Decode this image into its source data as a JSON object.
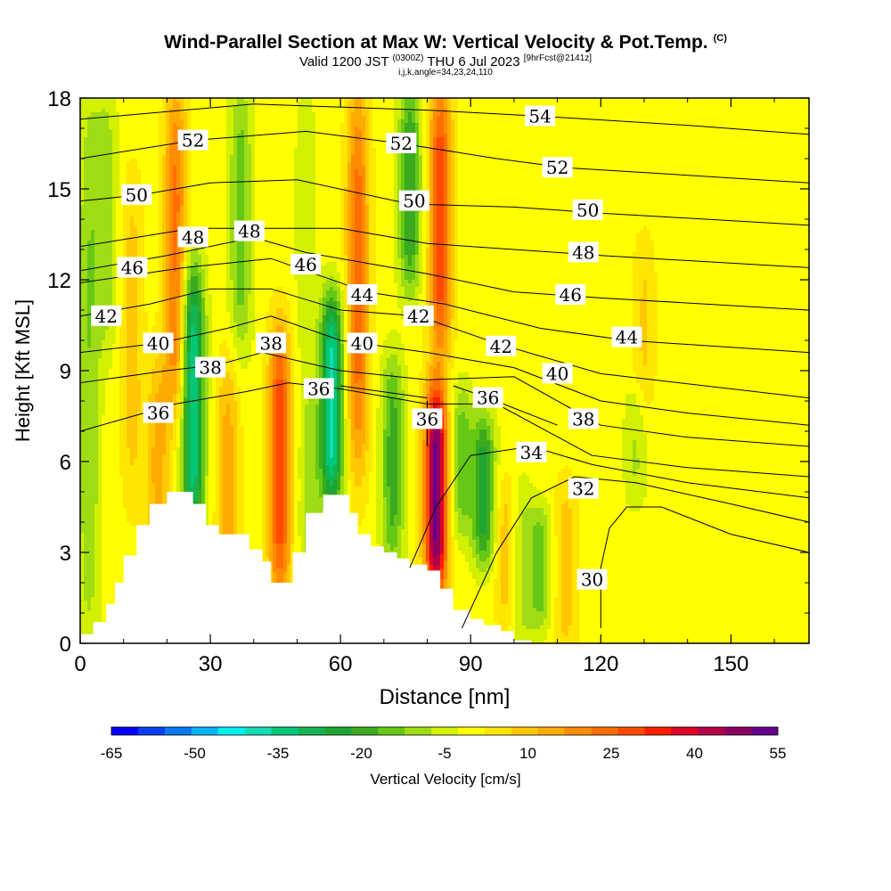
{
  "header": {
    "title": "Wind-Parallel Section at Max W: Vertical Velocity & Pot.Temp.",
    "copyright": "(C)",
    "valid_prefix": "Valid 1200 JST",
    "utc": "(0300Z)",
    "date": "THU 6 Jul 2023",
    "fcst": "[9hrFcst@2141z]",
    "params": "i,j,k,angle=34,23,24,110"
  },
  "chart_data": {
    "type": "heatmap",
    "title": "Wind-Parallel Section at Max W: Vertical Velocity & Pot.Temp.",
    "xlabel": "Distance [nm]",
    "ylabel": "Height [Kft MSL]",
    "xlim": [
      0,
      168
    ],
    "ylim": [
      0,
      18
    ],
    "x_ticks": [
      0,
      30,
      60,
      90,
      120,
      150
    ],
    "y_ticks": [
      0,
      3,
      6,
      9,
      12,
      15,
      18
    ],
    "colorbar": {
      "label": "Vertical Velocity [cm/s]",
      "tick_labels": [
        "-65",
        "-50",
        "-35",
        "-20",
        "-5",
        "10",
        "25",
        "40",
        "55"
      ],
      "levels": [
        -65,
        -60,
        -55,
        -50,
        -45,
        -40,
        -35,
        -30,
        -25,
        -20,
        -15,
        -10,
        -5,
        0,
        5,
        10,
        15,
        20,
        25,
        30,
        35,
        40,
        45,
        50,
        55
      ],
      "colors": [
        "#0000ff",
        "#0a3cf0",
        "#0a78f0",
        "#00b4f5",
        "#00f0f0",
        "#14dcb4",
        "#00c878",
        "#14b450",
        "#1ea532",
        "#3caa1e",
        "#64c814",
        "#a0dc14",
        "#d2f000",
        "#ffff00",
        "#ffe600",
        "#ffc800",
        "#ffaa00",
        "#ff8c00",
        "#ff6e00",
        "#ff4b00",
        "#ff1e00",
        "#dc0028",
        "#b40046",
        "#8c0064",
        "#64008c"
      ]
    },
    "background_w": 0,
    "velocity_features": [
      {
        "x": 2,
        "z0": 0,
        "z1": 18,
        "w": -12
      },
      {
        "x": 6,
        "z0": 10,
        "z1": 18,
        "w": -10
      },
      {
        "x": 12,
        "z0": 5,
        "z1": 15,
        "w": 10
      },
      {
        "x": 18,
        "z0": 1,
        "z1": 9,
        "w": 15
      },
      {
        "x": 22,
        "z0": 8,
        "z1": 18,
        "w": 24
      },
      {
        "x": 26,
        "z0": 4,
        "z1": 12,
        "w": -38
      },
      {
        "x": 34,
        "z0": 1,
        "z1": 9,
        "w": 15
      },
      {
        "x": 37,
        "z0": 10,
        "z1": 18,
        "w": -15
      },
      {
        "x": 46,
        "z0": 2,
        "z1": 10,
        "w": 32
      },
      {
        "x": 52,
        "z0": 9,
        "z1": 18,
        "w": -6
      },
      {
        "x": 53,
        "z0": 2,
        "z1": 8,
        "w": -10
      },
      {
        "x": 58,
        "z0": 5,
        "z1": 11,
        "w": -40
      },
      {
        "x": 64,
        "z0": 6,
        "z1": 18,
        "w": 25
      },
      {
        "x": 72,
        "z0": 3,
        "z1": 9,
        "w": -20
      },
      {
        "x": 76,
        "z0": 12,
        "z1": 18,
        "w": -22
      },
      {
        "x": 82,
        "z0": 2,
        "z1": 8,
        "w": 55
      },
      {
        "x": 83,
        "z0": 10,
        "z1": 18,
        "w": 32
      },
      {
        "x": 88,
        "z0": 4,
        "z1": 8,
        "w": -15
      },
      {
        "x": 93,
        "z0": 3,
        "z1": 7,
        "w": -25
      },
      {
        "x": 98,
        "z0": 1,
        "z1": 5,
        "w": 10
      },
      {
        "x": 102,
        "z0": 0,
        "z1": 5,
        "w": -8
      },
      {
        "x": 106,
        "z0": 1,
        "z1": 4,
        "w": -15
      },
      {
        "x": 112,
        "z0": 0,
        "z1": 5,
        "w": 10
      },
      {
        "x": 128,
        "z0": 5,
        "z1": 8,
        "w": -8
      },
      {
        "x": 130,
        "z0": 8,
        "z1": 13,
        "w": 8
      }
    ],
    "terrain": [
      [
        0,
        0.3
      ],
      [
        3,
        0.7
      ],
      [
        6,
        1.3
      ],
      [
        8,
        2.0
      ],
      [
        10,
        2.9
      ],
      [
        13,
        3.9
      ],
      [
        16,
        4.6
      ],
      [
        20,
        5.0
      ],
      [
        24,
        5.0
      ],
      [
        26,
        4.6
      ],
      [
        29,
        3.9
      ],
      [
        32,
        3.6
      ],
      [
        36,
        3.6
      ],
      [
        39,
        3.1
      ],
      [
        42,
        2.7
      ],
      [
        44,
        2.0
      ],
      [
        47,
        2.0
      ],
      [
        49,
        3.0
      ],
      [
        52,
        4.3
      ],
      [
        56,
        4.9
      ],
      [
        60,
        4.9
      ],
      [
        62,
        4.3
      ],
      [
        64,
        3.6
      ],
      [
        67,
        3.2
      ],
      [
        70,
        3.0
      ],
      [
        73,
        2.8
      ],
      [
        76,
        2.6
      ],
      [
        80,
        2.4
      ],
      [
        83,
        1.8
      ],
      [
        86,
        1.1
      ],
      [
        90,
        0.8
      ],
      [
        93,
        0.6
      ],
      [
        97,
        0.4
      ],
      [
        100,
        0.1
      ],
      [
        104,
        0
      ],
      [
        168,
        0
      ]
    ],
    "theta_lines": [
      {
        "label": "30",
        "label_at": [
          118,
          2.1
        ],
        "path": [
          [
            120,
            0.5
          ],
          [
            120,
            2.5
          ],
          [
            122,
            3.8
          ],
          [
            126,
            4.5
          ],
          [
            134,
            4.5
          ],
          [
            150,
            3.6
          ],
          [
            168,
            3.0
          ]
        ]
      },
      {
        "label": "32",
        "label_at": [
          116,
          5.1
        ],
        "path": [
          [
            88,
            0.5
          ],
          [
            96,
            3.0
          ],
          [
            104,
            4.8
          ],
          [
            114,
            5.5
          ],
          [
            128,
            5.3
          ],
          [
            150,
            4.6
          ],
          [
            168,
            4.0
          ]
        ]
      },
      {
        "label": "34",
        "label_at": [
          104,
          6.3
        ],
        "path": [
          [
            76,
            2.5
          ],
          [
            82,
            4.5
          ],
          [
            90,
            6.2
          ],
          [
            104,
            6.5
          ],
          [
            118,
            5.9
          ],
          [
            140,
            5.3
          ],
          [
            168,
            4.8
          ]
        ]
      },
      {
        "label": "36",
        "label_at": [
          18,
          7.6
        ],
        "path": [
          [
            0,
            7.0
          ],
          [
            22,
            7.9
          ],
          [
            38,
            8.3
          ],
          [
            48,
            8.6
          ],
          [
            60,
            8.4
          ],
          [
            80,
            7.9
          ],
          [
            96,
            7.9
          ],
          [
            118,
            6.2
          ],
          [
            140,
            5.8
          ],
          [
            168,
            5.5
          ]
        ]
      },
      {
        "label": "36",
        "label_at": [
          55,
          8.4
        ],
        "path": [
          [
            60,
            8.5
          ],
          [
            80,
            8.1
          ]
        ]
      },
      {
        "label": "36",
        "label_at": [
          80,
          7.4
        ],
        "path": [
          [
            80,
            8.0
          ],
          [
            80,
            6.5
          ]
        ]
      },
      {
        "label": "36",
        "label_at": [
          94,
          8.1
        ],
        "path": [
          [
            86,
            8.5
          ],
          [
            94,
            8.1
          ],
          [
            110,
            7.2
          ]
        ]
      },
      {
        "label": "38",
        "label_at": [
          30,
          9.1
        ],
        "path": [
          [
            0,
            8.6
          ],
          [
            20,
            9.0
          ],
          [
            32,
            9.2
          ],
          [
            42,
            9.6
          ],
          [
            60,
            9.0
          ],
          [
            80,
            8.7
          ],
          [
            100,
            8.8
          ],
          [
            120,
            7.2
          ],
          [
            140,
            6.8
          ],
          [
            168,
            6.5
          ]
        ]
      },
      {
        "label": "38",
        "label_at": [
          44,
          9.9
        ],
        "path": [
          [
            44,
            10.0
          ]
        ]
      },
      {
        "label": "38",
        "label_at": [
          116,
          7.4
        ],
        "path": [
          [
            116,
            7.4
          ]
        ]
      },
      {
        "label": "40",
        "label_at": [
          18,
          9.9
        ],
        "path": [
          [
            0,
            9.6
          ],
          [
            18,
            9.9
          ],
          [
            34,
            10.4
          ],
          [
            44,
            10.8
          ],
          [
            60,
            10.0
          ],
          [
            80,
            9.6
          ],
          [
            100,
            9.1
          ],
          [
            120,
            8.0
          ],
          [
            140,
            7.6
          ],
          [
            168,
            7.2
          ]
        ]
      },
      {
        "label": "40",
        "label_at": [
          65,
          9.9
        ],
        "path": [
          [
            65,
            9.9
          ]
        ]
      },
      {
        "label": "40",
        "label_at": [
          110,
          8.9
        ],
        "path": [
          [
            110,
            8.9
          ]
        ]
      },
      {
        "label": "42",
        "label_at": [
          6,
          10.8
        ],
        "path": [
          [
            0,
            10.8
          ],
          [
            16,
            11.2
          ],
          [
            30,
            11.7
          ],
          [
            44,
            11.7
          ],
          [
            60,
            11.0
          ],
          [
            78,
            10.8
          ],
          [
            96,
            9.9
          ],
          [
            120,
            8.9
          ],
          [
            168,
            8.1
          ]
        ]
      },
      {
        "label": "42",
        "label_at": [
          78,
          10.8
        ],
        "path": [
          [
            78,
            10.8
          ]
        ]
      },
      {
        "label": "42",
        "label_at": [
          97,
          9.8
        ],
        "path": [
          [
            97,
            9.8
          ]
        ]
      },
      {
        "label": "44",
        "label_at": [
          65,
          11.5
        ],
        "path": [
          [
            0,
            11.9
          ],
          [
            24,
            12.4
          ],
          [
            44,
            12.7
          ],
          [
            66,
            11.6
          ],
          [
            84,
            11.2
          ],
          [
            106,
            10.4
          ],
          [
            126,
            10.0
          ],
          [
            168,
            9.6
          ]
        ]
      },
      {
        "label": "44",
        "label_at": [
          126,
          10.1
        ],
        "path": [
          [
            126,
            10.1
          ]
        ]
      },
      {
        "label": "46",
        "label_at": [
          12,
          12.4
        ],
        "path": [
          [
            0,
            12.3
          ],
          [
            20,
            12.8
          ],
          [
            40,
            13.4
          ],
          [
            52,
            12.9
          ],
          [
            80,
            12.2
          ],
          [
            100,
            11.6
          ],
          [
            120,
            11.4
          ],
          [
            168,
            11.0
          ]
        ]
      },
      {
        "label": "46",
        "label_at": [
          52,
          12.5
        ],
        "path": [
          [
            52,
            12.5
          ]
        ]
      },
      {
        "label": "46",
        "label_at": [
          113,
          11.5
        ],
        "path": [
          [
            113,
            11.5
          ]
        ]
      },
      {
        "label": "48",
        "label_at": [
          26,
          13.4
        ],
        "path": [
          [
            0,
            13.1
          ],
          [
            26,
            13.7
          ],
          [
            40,
            13.7
          ],
          [
            60,
            13.7
          ],
          [
            80,
            13.2
          ],
          [
            100,
            13.0
          ],
          [
            120,
            12.8
          ],
          [
            168,
            12.4
          ]
        ]
      },
      {
        "label": "48",
        "label_at": [
          39,
          13.6
        ],
        "path": [
          [
            39,
            13.6
          ]
        ]
      },
      {
        "label": "48",
        "label_at": [
          116,
          12.9
        ],
        "path": [
          [
            116,
            12.9
          ]
        ]
      },
      {
        "label": "50",
        "label_at": [
          13,
          14.8
        ],
        "path": [
          [
            0,
            14.6
          ],
          [
            14,
            14.8
          ],
          [
            30,
            15.2
          ],
          [
            50,
            15.3
          ],
          [
            76,
            14.5
          ],
          [
            100,
            14.4
          ],
          [
            120,
            14.2
          ],
          [
            168,
            13.8
          ]
        ]
      },
      {
        "label": "50",
        "label_at": [
          77,
          14.6
        ],
        "path": [
          [
            77,
            14.6
          ]
        ]
      },
      {
        "label": "50",
        "label_at": [
          117,
          14.3
        ],
        "path": [
          [
            117,
            14.3
          ]
        ]
      },
      {
        "label": "52",
        "label_at": [
          26,
          16.6
        ],
        "path": [
          [
            0,
            16.0
          ],
          [
            26,
            16.6
          ],
          [
            52,
            16.9
          ],
          [
            74,
            16.5
          ],
          [
            96,
            16.0
          ],
          [
            112,
            15.7
          ],
          [
            168,
            15.2
          ]
        ]
      },
      {
        "label": "52",
        "label_at": [
          74,
          16.5
        ],
        "path": [
          [
            74,
            16.5
          ]
        ]
      },
      {
        "label": "52",
        "label_at": [
          110,
          15.7
        ],
        "path": [
          [
            110,
            15.7
          ]
        ]
      },
      {
        "label": "54",
        "label_at": [
          106,
          17.4
        ],
        "path": [
          [
            0,
            17.3
          ],
          [
            40,
            17.8
          ],
          [
            80,
            17.6
          ],
          [
            106,
            17.4
          ],
          [
            140,
            17.1
          ],
          [
            168,
            16.8
          ]
        ]
      }
    ]
  }
}
